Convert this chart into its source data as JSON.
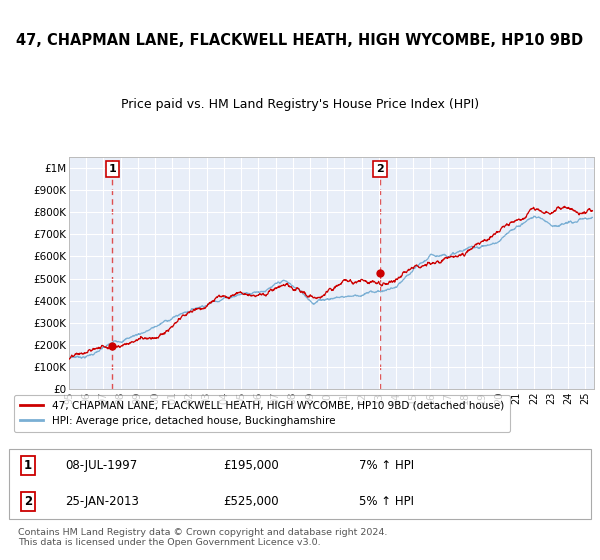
{
  "title1": "47, CHAPMAN LANE, FLACKWELL HEATH, HIGH WYCOMBE, HP10 9BD",
  "title2": "Price paid vs. HM Land Registry's House Price Index (HPI)",
  "sale1_year": 1997.52,
  "sale1_price": 195000,
  "sale1_date": "08-JUL-1997",
  "sale1_hpi": "7% ↑ HPI",
  "sale2_year": 2013.07,
  "sale2_price": 525000,
  "sale2_date": "25-JAN-2013",
  "sale2_hpi": "5% ↑ HPI",
  "line_color_property": "#cc0000",
  "line_color_hpi": "#7aafd4",
  "legend_label1": "47, CHAPMAN LANE, FLACKWELL HEATH, HIGH WYCOMBE, HP10 9BD (detached house)",
  "legend_label2": "HPI: Average price, detached house, Buckinghamshire",
  "footer": "Contains HM Land Registry data © Crown copyright and database right 2024.\nThis data is licensed under the Open Government Licence v3.0.",
  "yticks": [
    0,
    100000,
    200000,
    300000,
    400000,
    500000,
    600000,
    700000,
    800000,
    900000,
    1000000
  ],
  "ytick_labels": [
    "£0",
    "£100K",
    "£200K",
    "£300K",
    "£400K",
    "£500K",
    "£600K",
    "£700K",
    "£800K",
    "£900K",
    "£1M"
  ],
  "xlim_start": 1995.0,
  "xlim_end": 2025.5,
  "ylim_min": 0,
  "ylim_max": 1050000,
  "background_color": "#e8eef8"
}
